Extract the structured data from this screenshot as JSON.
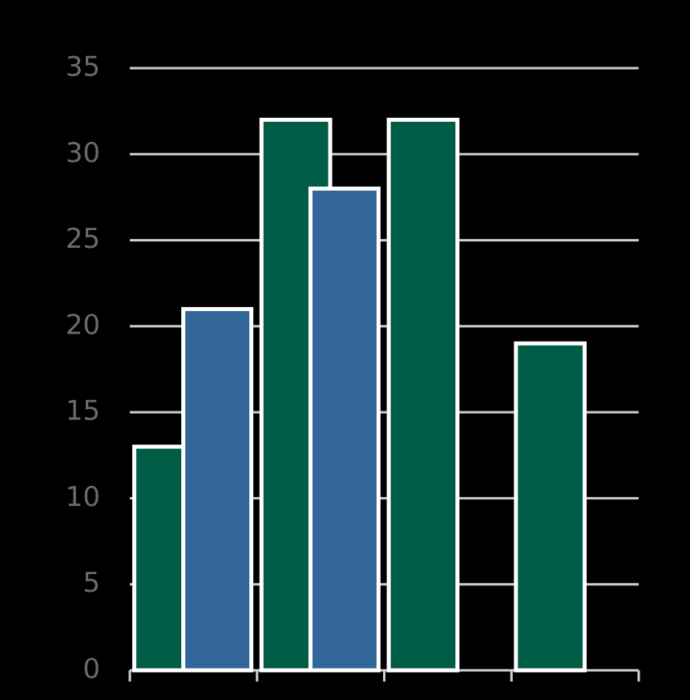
{
  "chart_data": {
    "type": "bar",
    "categories": [
      null,
      null,
      null,
      null
    ],
    "series": [
      {
        "color": "#005c45",
        "values": [
          13,
          32,
          32,
          19
        ]
      },
      {
        "color": "#336699",
        "values": [
          21,
          28,
          null,
          null
        ]
      }
    ],
    "ylim": [
      0,
      35
    ],
    "yticks": [
      0,
      5,
      10,
      15,
      20,
      25,
      30,
      35
    ],
    "grid": true
  }
}
